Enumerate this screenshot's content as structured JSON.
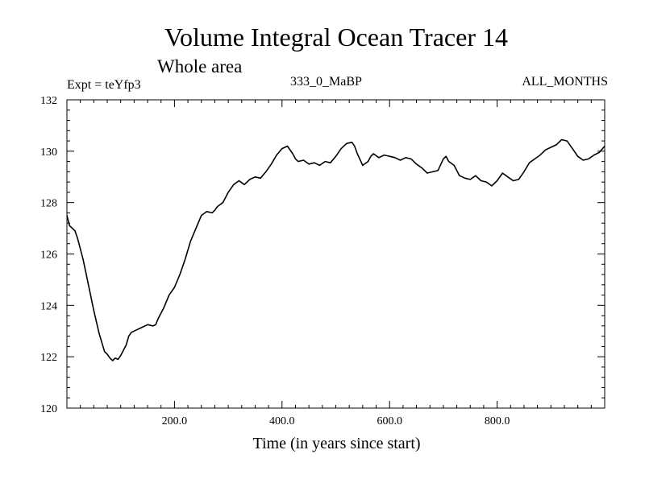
{
  "chart_data": {
    "type": "line",
    "title": "Volume Integral Ocean Tracer 14",
    "subtitle": "Whole area",
    "annotations": {
      "experiment": "Expt = teYfp3",
      "period": "333_0_MaBP",
      "months": "ALL_MONTHS"
    },
    "xlabel": "Time (in years since start)",
    "ylabel": "",
    "xlim": [
      0,
      1000
    ],
    "ylim": [
      120,
      132
    ],
    "x_ticks": [
      200,
      400,
      600,
      800
    ],
    "x_tick_labels": [
      "200.0",
      "400.0",
      "600.0",
      "800.0"
    ],
    "y_ticks": [
      120,
      122,
      124,
      126,
      128,
      130,
      132
    ],
    "y_tick_labels": [
      "120",
      "122",
      "124",
      "126",
      "128",
      "130",
      "132"
    ],
    "grid": false,
    "series": [
      {
        "x": [
          0,
          5,
          10,
          15,
          20,
          30,
          40,
          50,
          60,
          70,
          75,
          80,
          85,
          90,
          95,
          100,
          105,
          110,
          115,
          120,
          130,
          140,
          150,
          160,
          165,
          170,
          180,
          190,
          200,
          210,
          220,
          230,
          240,
          250,
          260,
          270,
          275,
          280,
          290,
          300,
          310,
          320,
          330,
          340,
          350,
          360,
          370,
          380,
          390,
          400,
          410,
          420,
          425,
          430,
          440,
          450,
          460,
          470,
          480,
          490,
          500,
          510,
          520,
          530,
          535,
          540,
          550,
          560,
          565,
          570,
          580,
          590,
          600,
          610,
          620,
          630,
          640,
          650,
          660,
          670,
          680,
          690,
          700,
          705,
          710,
          720,
          730,
          740,
          750,
          760,
          770,
          780,
          790,
          800,
          810,
          820,
          830,
          840,
          850,
          860,
          870,
          880,
          890,
          900,
          910,
          920,
          930,
          940,
          950,
          960,
          970,
          980,
          990,
          1000
        ],
        "y": [
          127.5,
          127.1,
          127.0,
          126.9,
          126.6,
          125.8,
          124.8,
          123.8,
          122.9,
          122.2,
          122.1,
          121.95,
          121.85,
          121.95,
          121.9,
          122.05,
          122.25,
          122.45,
          122.8,
          122.95,
          123.05,
          123.15,
          123.25,
          123.2,
          123.25,
          123.5,
          123.9,
          124.4,
          124.7,
          125.2,
          125.8,
          126.5,
          127.0,
          127.5,
          127.65,
          127.6,
          127.7,
          127.85,
          128.0,
          128.4,
          128.7,
          128.85,
          128.7,
          128.9,
          129.0,
          128.95,
          129.2,
          129.5,
          129.85,
          130.1,
          130.2,
          129.9,
          129.7,
          129.6,
          129.65,
          129.5,
          129.55,
          129.45,
          129.6,
          129.55,
          129.8,
          130.1,
          130.3,
          130.35,
          130.2,
          129.9,
          129.45,
          129.6,
          129.8,
          129.9,
          129.75,
          129.85,
          129.8,
          129.75,
          129.65,
          129.75,
          129.7,
          129.5,
          129.35,
          129.15,
          129.2,
          129.25,
          129.7,
          129.8,
          129.6,
          129.45,
          129.05,
          128.95,
          128.9,
          129.05,
          128.85,
          128.8,
          128.65,
          128.85,
          129.15,
          129.0,
          128.85,
          128.9,
          129.2,
          129.55,
          129.7,
          129.85,
          130.05,
          130.15,
          130.25,
          130.45,
          130.4,
          130.1,
          129.8,
          129.65,
          129.7,
          129.85,
          129.95,
          130.2
        ]
      }
    ]
  }
}
